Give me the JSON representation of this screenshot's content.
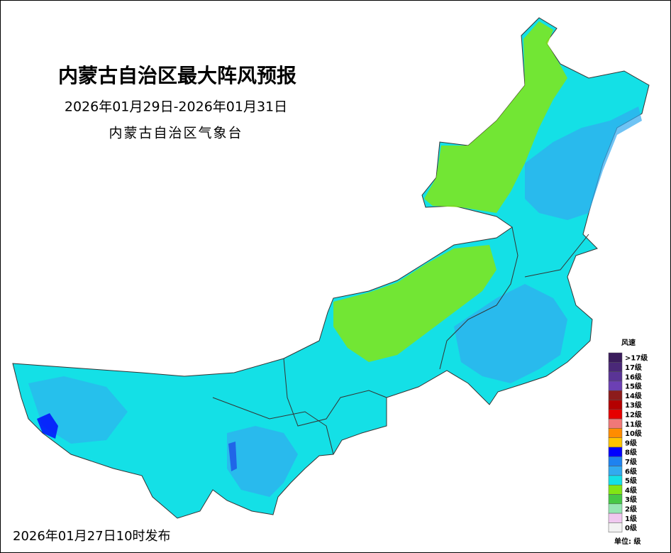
{
  "header": {
    "title": "内蒙古自治区最大阵风预报",
    "period": "2026年01月29日-2026年01月31日",
    "issuer": "内蒙古自治区气象台"
  },
  "legend": {
    "title": "风速",
    "unit": "单位: 级",
    "items": [
      {
        "label": ">17级",
        "color": "#3a1c5c"
      },
      {
        "label": "17级",
        "color": "#4a2878"
      },
      {
        "label": "16级",
        "color": "#5a3496"
      },
      {
        "label": "15级",
        "color": "#6c40b4"
      },
      {
        "label": "14级",
        "color": "#8c1c1c"
      },
      {
        "label": "13级",
        "color": "#b40000"
      },
      {
        "label": "12级",
        "color": "#e60000"
      },
      {
        "label": "11级",
        "color": "#f07878"
      },
      {
        "label": "10级",
        "color": "#ff8c00"
      },
      {
        "label": "9级",
        "color": "#ffc400"
      },
      {
        "label": "8级",
        "color": "#0000ff"
      },
      {
        "label": "7级",
        "color": "#1e82f0"
      },
      {
        "label": "6级",
        "color": "#32aaf0"
      },
      {
        "label": "5级",
        "color": "#14e0e6"
      },
      {
        "label": "4级",
        "color": "#82e614"
      },
      {
        "label": "3级",
        "color": "#46c846"
      },
      {
        "label": "2级",
        "color": "#96e6b4"
      },
      {
        "label": "1级",
        "color": "#f0c8f0"
      },
      {
        "label": "0级",
        "color": "#f2f2f2"
      }
    ]
  },
  "footer": {
    "issued": "2026年01月27日10时发布"
  }
}
